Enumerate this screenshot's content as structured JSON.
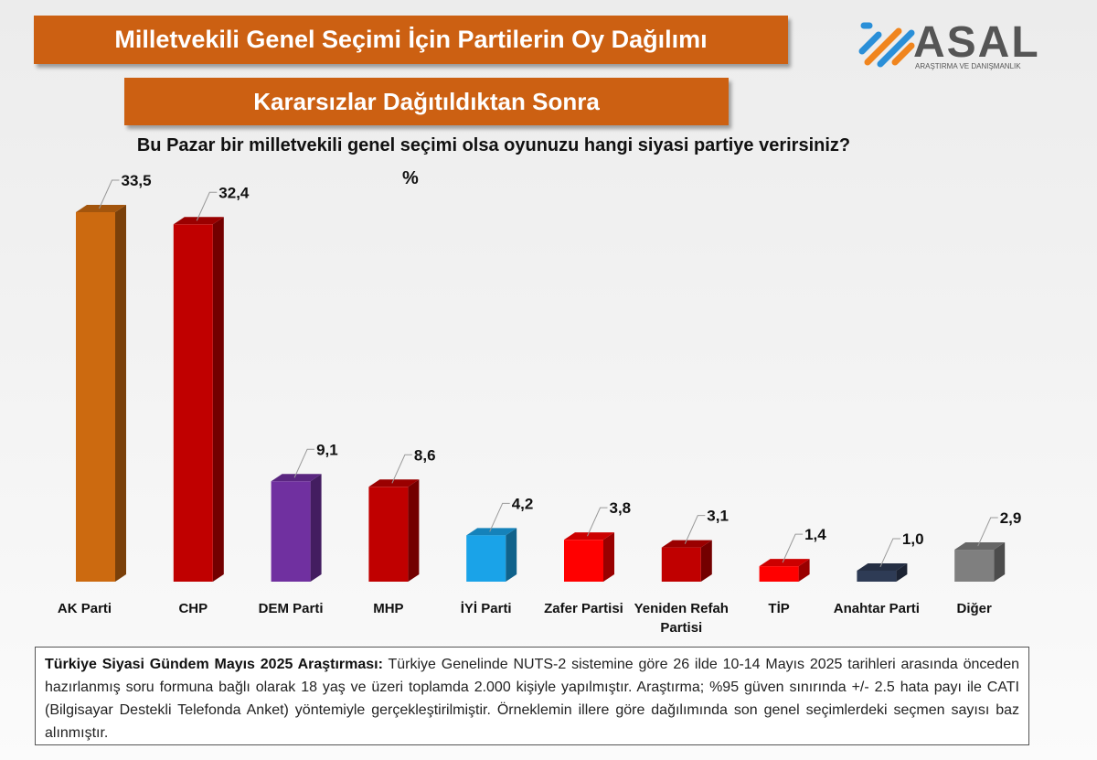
{
  "header": {
    "title": "Milletvekili Genel Seçimi İçin Partilerin Oy Dağılımı",
    "subtitle": "Kararsızlar Dağıtıldıktan Sonra"
  },
  "logo": {
    "name": "ASAL",
    "tagline": "ARAŞTIRMA VE DANIŞMANLIK",
    "colors": [
      "#2a8fd8",
      "#f0851e",
      "#555555"
    ]
  },
  "chart_data": {
    "type": "bar",
    "title": "Bu Pazar bir milletvekili genel seçimi olsa oyunuzu  hangi siyasi partiye verirsiniz?",
    "unit": "%",
    "categories": [
      "AK Parti",
      "CHP",
      "DEM Parti",
      "MHP",
      "İYİ Parti",
      "Zafer Partisi",
      "Yeniden Refah Partisi",
      "TİP",
      "Anahtar Parti",
      "Diğer"
    ],
    "values": [
      33.5,
      32.4,
      9.1,
      8.6,
      4.2,
      3.8,
      3.1,
      1.4,
      1.0,
      2.9
    ],
    "labels": [
      "33,5",
      "32,4",
      "9,1",
      "8,6",
      "4,2",
      "3,8",
      "3,1",
      "1,4",
      "1,0",
      "2,9"
    ],
    "colors": [
      "#cc6a10",
      "#c00000",
      "#7030a0",
      "#c00000",
      "#1aa3e8",
      "#ff0000",
      "#c00000",
      "#ff0000",
      "#2e3b55",
      "#7f7f7f"
    ],
    "ylim": [
      0,
      35
    ],
    "grid": false,
    "legend": "none"
  },
  "note": {
    "bold": "Türkiye Siyasi Gündem Mayıs 2025 Araştırması:",
    "text": " Türkiye Genelinde NUTS-2 sistemine göre 26 ilde 10-14 Mayıs 2025 tarihleri arasında önceden  hazırlanmış soru formuna bağlı olarak 18 yaş ve üzeri toplamda 2.000 kişiyle yapılmıştır. Araştırma; %95 güven sınırında +/- 2.5 hata payı ile CATI (Bilgisayar Destekli Telefonda  Anket) yöntemiyle gerçekleştirilmiştir. Örneklemin illere göre dağılımında son genel  seçimlerdeki seçmen sayısı baz alınmıştır."
  }
}
